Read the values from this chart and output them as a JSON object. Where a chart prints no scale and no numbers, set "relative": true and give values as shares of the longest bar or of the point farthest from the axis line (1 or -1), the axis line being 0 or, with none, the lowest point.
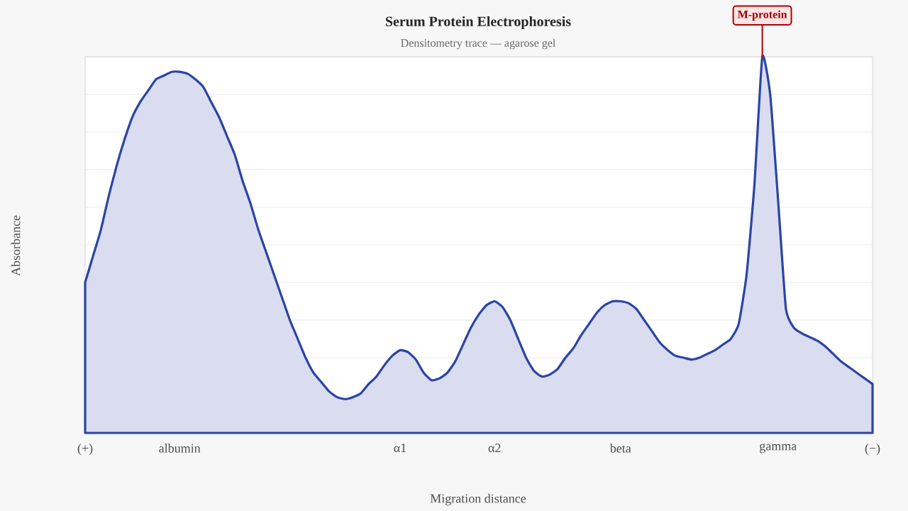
{
  "chart_data": {
    "type": "area",
    "title": "Serum Protein Electrophoresis",
    "subtitle": "Densitometry trace — agarose gel",
    "xlabel": "Migration distance",
    "ylabel": "Absorbance",
    "relative": true,
    "grid": "y",
    "categories": [
      "(+)",
      null,
      null,
      null,
      null,
      null,
      null,
      null,
      null,
      null,
      null,
      null,
      "albumin",
      null,
      null,
      null,
      null,
      null,
      null,
      null,
      null,
      null,
      null,
      null,
      null,
      null,
      null,
      null,
      null,
      null,
      null,
      null,
      null,
      null,
      null,
      null,
      null,
      null,
      null,
      null,
      "α1",
      null,
      null,
      null,
      null,
      null,
      null,
      null,
      null,
      null,
      null,
      null,
      "α2",
      null,
      null,
      null,
      null,
      null,
      null,
      null,
      null,
      null,
      null,
      null,
      null,
      null,
      null,
      null,
      "beta",
      null,
      null,
      null,
      null,
      null,
      null,
      null,
      null,
      null,
      null,
      null,
      null,
      null,
      null,
      null,
      null,
      null,
      null,
      null,
      "gamma",
      null,
      null,
      null,
      null,
      null,
      null,
      null,
      null,
      null,
      null,
      null,
      "(−)"
    ],
    "series": [
      {
        "color": "#2a44a6",
        "values": [
          0.4,
          0.47,
          0.54,
          0.63,
          0.71,
          0.78,
          0.84,
          0.88,
          0.91,
          0.94,
          0.95,
          0.96,
          0.96,
          0.955,
          0.94,
          0.92,
          0.88,
          0.84,
          0.79,
          0.74,
          0.67,
          0.61,
          0.54,
          0.48,
          0.42,
          0.36,
          0.3,
          0.25,
          0.2,
          0.16,
          0.135,
          0.11,
          0.095,
          0.09,
          0.095,
          0.105,
          0.13,
          0.15,
          0.18,
          0.205,
          0.22,
          0.215,
          0.195,
          0.16,
          0.14,
          0.145,
          0.16,
          0.19,
          0.235,
          0.28,
          0.315,
          0.34,
          0.35,
          0.335,
          0.3,
          0.25,
          0.2,
          0.165,
          0.15,
          0.155,
          0.17,
          0.2,
          0.225,
          0.26,
          0.29,
          0.32,
          0.34,
          0.35,
          0.35,
          0.345,
          0.33,
          0.3,
          0.27,
          0.24,
          0.22,
          0.205,
          0.2,
          0.195,
          0.2,
          0.21,
          0.22,
          0.235,
          0.25,
          0.29,
          0.42,
          0.66,
          1.0,
          0.9,
          0.62,
          0.33,
          0.28,
          0.265,
          0.255,
          0.245,
          0.23,
          0.21,
          0.19,
          0.175,
          0.16,
          0.145,
          0.13
        ]
      }
    ],
    "annotations": [
      "M-protein"
    ]
  }
}
